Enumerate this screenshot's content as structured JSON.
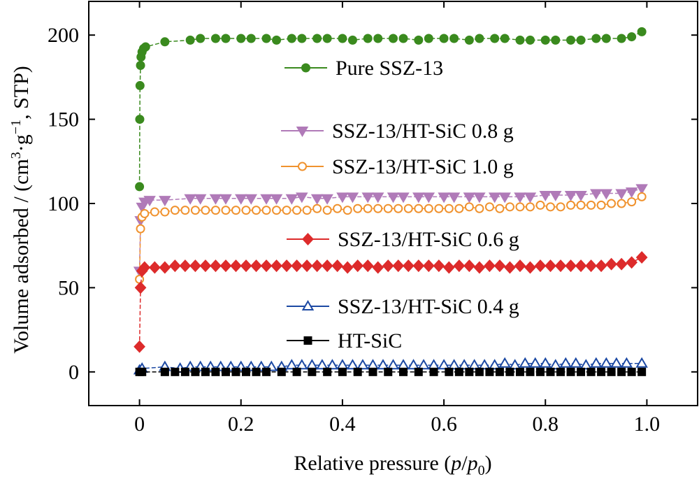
{
  "chart_data": {
    "type": "line",
    "xlabel": {
      "prefix": "Relative pressure (",
      "p": "p",
      "slash": "/",
      "p0": "p",
      "sub0": "0",
      "suffix": ")"
    },
    "ylabel": {
      "main": "Volume adsorbed / (cm",
      "sup3": "3",
      "dot_g": "·g",
      "supm1": "−1",
      "end": ", STP)"
    },
    "xlim": [
      -0.1,
      1.1
    ],
    "ylim": [
      -20,
      220
    ],
    "xticks": [
      0,
      0.2,
      0.4,
      0.6,
      0.8,
      1.0
    ],
    "xtick_labels": [
      "0",
      "0.2",
      "0.4",
      "0.6",
      "0.8",
      "1.0"
    ],
    "yticks": [
      0,
      50,
      100,
      150,
      200
    ],
    "ytick_labels": [
      "0",
      "50",
      "100",
      "150",
      "200"
    ],
    "grid": false,
    "legend_placement": "inside, stacked in the plot area",
    "series": [
      {
        "name": "Pure SSZ-13",
        "color": "#3a8a1e",
        "marker": "circle",
        "filled": true,
        "x": [
          0.0,
          0.0005,
          0.001,
          0.002,
          0.003,
          0.005,
          0.008,
          0.012,
          0.05,
          0.1,
          0.12,
          0.15,
          0.17,
          0.2,
          0.22,
          0.25,
          0.27,
          0.3,
          0.32,
          0.35,
          0.37,
          0.4,
          0.42,
          0.45,
          0.47,
          0.5,
          0.52,
          0.55,
          0.57,
          0.6,
          0.62,
          0.65,
          0.67,
          0.7,
          0.72,
          0.75,
          0.77,
          0.8,
          0.82,
          0.85,
          0.87,
          0.9,
          0.92,
          0.95,
          0.97,
          0.99
        ],
        "y": [
          110,
          150,
          170,
          182,
          187,
          190,
          192,
          193,
          196,
          197,
          198,
          198,
          198,
          198,
          198,
          198,
          197,
          198,
          198,
          198,
          198,
          198,
          197,
          198,
          198,
          198,
          198,
          197,
          198,
          198,
          198,
          197,
          198,
          198,
          198,
          197,
          197,
          197,
          197,
          197,
          197,
          198,
          198,
          198,
          199,
          202
        ]
      },
      {
        "name": "SSZ-13/HT-SiC 0.8 g",
        "color": "#b07ab8",
        "marker": "triangle-down",
        "filled": true,
        "x": [
          0.0,
          0.002,
          0.005,
          0.01,
          0.02,
          0.05,
          0.1,
          0.12,
          0.15,
          0.17,
          0.2,
          0.22,
          0.25,
          0.27,
          0.3,
          0.32,
          0.35,
          0.37,
          0.4,
          0.42,
          0.45,
          0.47,
          0.5,
          0.52,
          0.55,
          0.57,
          0.6,
          0.62,
          0.65,
          0.67,
          0.7,
          0.72,
          0.75,
          0.77,
          0.8,
          0.82,
          0.85,
          0.87,
          0.9,
          0.92,
          0.95,
          0.97,
          0.99
        ],
        "y": [
          60,
          90,
          98,
          101,
          102,
          102,
          103,
          103,
          103,
          103,
          103,
          103,
          103,
          103,
          103,
          104,
          103,
          103,
          104,
          104,
          104,
          104,
          104,
          104,
          104,
          104,
          104,
          104,
          104,
          104,
          104,
          104,
          104,
          104,
          105,
          105,
          105,
          105,
          106,
          106,
          106,
          107,
          109
        ]
      },
      {
        "name": "SSZ-13/HT-SiC 1.0 g",
        "color": "#f0922e",
        "marker": "circle",
        "filled": false,
        "x": [
          0.0,
          0.002,
          0.005,
          0.01,
          0.03,
          0.05,
          0.07,
          0.09,
          0.11,
          0.13,
          0.15,
          0.17,
          0.19,
          0.21,
          0.23,
          0.25,
          0.27,
          0.29,
          0.31,
          0.33,
          0.35,
          0.37,
          0.39,
          0.41,
          0.43,
          0.45,
          0.47,
          0.49,
          0.51,
          0.53,
          0.55,
          0.57,
          0.59,
          0.61,
          0.63,
          0.65,
          0.67,
          0.69,
          0.71,
          0.73,
          0.75,
          0.77,
          0.79,
          0.81,
          0.83,
          0.85,
          0.87,
          0.89,
          0.91,
          0.93,
          0.95,
          0.97,
          0.99
        ],
        "y": [
          55,
          85,
          92,
          94,
          95,
          95,
          96,
          96,
          96,
          96,
          96,
          96,
          96,
          96,
          96,
          96,
          96,
          96,
          96,
          96,
          97,
          96,
          97,
          96,
          97,
          97,
          97,
          97,
          97,
          97,
          97,
          97,
          97,
          97,
          97,
          98,
          97,
          98,
          97,
          98,
          98,
          98,
          99,
          98,
          98,
          99,
          99,
          99,
          99,
          100,
          100,
          101,
          104
        ]
      },
      {
        "name": "SSZ-13/HT-SiC 0.6 g",
        "color": "#dd2b2b",
        "marker": "diamond",
        "filled": true,
        "x": [
          0.0,
          0.002,
          0.005,
          0.01,
          0.03,
          0.05,
          0.07,
          0.09,
          0.11,
          0.13,
          0.15,
          0.17,
          0.19,
          0.21,
          0.23,
          0.25,
          0.27,
          0.29,
          0.31,
          0.33,
          0.35,
          0.37,
          0.39,
          0.41,
          0.43,
          0.45,
          0.47,
          0.49,
          0.51,
          0.53,
          0.55,
          0.57,
          0.59,
          0.61,
          0.63,
          0.65,
          0.67,
          0.69,
          0.71,
          0.73,
          0.75,
          0.77,
          0.79,
          0.81,
          0.83,
          0.85,
          0.87,
          0.89,
          0.91,
          0.93,
          0.95,
          0.97,
          0.99
        ],
        "y": [
          15,
          50,
          60,
          62,
          62,
          62,
          63,
          63,
          63,
          63,
          63,
          63,
          63,
          63,
          63,
          63,
          63,
          63,
          63,
          63,
          63,
          63,
          63,
          62,
          63,
          63,
          62,
          63,
          63,
          63,
          63,
          63,
          63,
          62,
          63,
          63,
          62,
          63,
          63,
          62,
          63,
          62,
          63,
          63,
          63,
          63,
          63,
          63,
          63,
          64,
          64,
          65,
          68
        ]
      },
      {
        "name": "SSZ-13/HT-SiC 0.4 g",
        "color": "#1c49a3",
        "marker": "triangle-up",
        "filled": false,
        "x": [
          0.0,
          0.005,
          0.05,
          0.08,
          0.1,
          0.12,
          0.14,
          0.16,
          0.18,
          0.2,
          0.22,
          0.24,
          0.26,
          0.28,
          0.3,
          0.32,
          0.34,
          0.36,
          0.38,
          0.4,
          0.42,
          0.44,
          0.46,
          0.48,
          0.5,
          0.52,
          0.54,
          0.56,
          0.58,
          0.6,
          0.62,
          0.64,
          0.66,
          0.68,
          0.7,
          0.72,
          0.74,
          0.76,
          0.78,
          0.8,
          0.82,
          0.84,
          0.86,
          0.88,
          0.9,
          0.92,
          0.94,
          0.96,
          0.99
        ],
        "y": [
          1,
          2,
          3,
          2,
          3,
          3,
          3,
          3,
          3,
          3,
          3,
          3,
          3,
          3,
          4,
          4,
          4,
          4,
          4,
          4,
          4,
          4,
          4,
          4,
          4,
          4,
          4,
          4,
          4,
          4,
          4,
          4,
          4,
          4,
          4,
          5,
          4,
          5,
          5,
          5,
          4,
          5,
          5,
          4,
          5,
          5,
          5,
          5,
          5
        ]
      },
      {
        "name": "HT-SiC",
        "color": "#000000",
        "marker": "square",
        "filled": true,
        "x": [
          0.0,
          0.005,
          0.05,
          0.07,
          0.09,
          0.11,
          0.13,
          0.15,
          0.17,
          0.19,
          0.21,
          0.23,
          0.25,
          0.28,
          0.31,
          0.34,
          0.37,
          0.4,
          0.43,
          0.46,
          0.49,
          0.52,
          0.55,
          0.58,
          0.61,
          0.63,
          0.65,
          0.67,
          0.69,
          0.71,
          0.73,
          0.75,
          0.77,
          0.79,
          0.81,
          0.83,
          0.85,
          0.87,
          0.89,
          0.91,
          0.93,
          0.95,
          0.97,
          0.99
        ],
        "y": [
          0,
          0,
          0,
          0,
          0,
          0,
          0,
          0,
          0,
          0,
          0,
          0,
          0,
          0,
          0,
          0,
          0,
          0,
          0,
          0,
          0,
          0,
          0,
          0,
          0,
          0,
          0,
          0,
          0,
          0,
          0,
          0,
          0,
          0,
          0,
          0,
          0,
          0,
          0,
          0,
          0,
          0,
          0,
          0
        ]
      }
    ]
  }
}
